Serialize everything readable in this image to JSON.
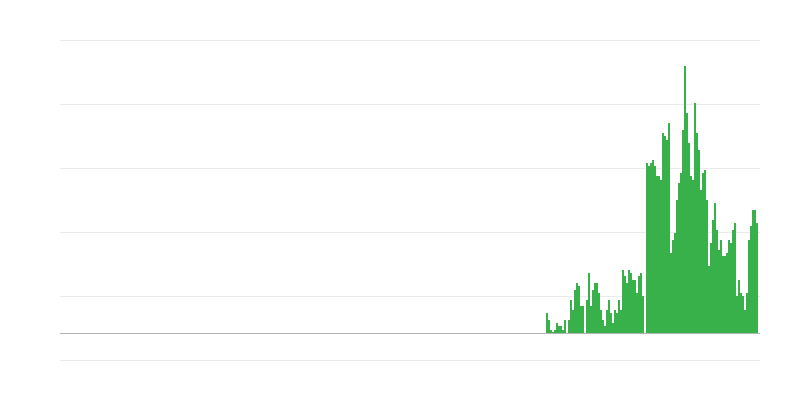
{
  "chart_data": {
    "type": "bar",
    "title": "",
    "xlabel": "",
    "ylabel": "",
    "ylim": [
      0,
      293
    ],
    "grid": true,
    "bar_color": "#39b14b",
    "gridline_color": "#ebebeb",
    "baseline_color": "#b3b3b3",
    "values": [
      20,
      13,
      3,
      1,
      3,
      10,
      7,
      7,
      3,
      13,
      0,
      13,
      33,
      23,
      43,
      50,
      47,
      27,
      27,
      0,
      33,
      60,
      27,
      43,
      50,
      50,
      40,
      23,
      13,
      7,
      23,
      33,
      20,
      10,
      23,
      20,
      33,
      23,
      63,
      57,
      50,
      63,
      60,
      53,
      53,
      40,
      57,
      60,
      37,
      0,
      170,
      167,
      170,
      173,
      167,
      157,
      157,
      153,
      200,
      197,
      193,
      210,
      80,
      93,
      100,
      133,
      150,
      160,
      203,
      267,
      220,
      190,
      157,
      153,
      230,
      200,
      183,
      143,
      160,
      163,
      133,
      67,
      90,
      113,
      130,
      103,
      83,
      93,
      77,
      77,
      80,
      93,
      90,
      103,
      110,
      37,
      53,
      40,
      37,
      23,
      40,
      93,
      107,
      123,
      123,
      110
    ]
  }
}
